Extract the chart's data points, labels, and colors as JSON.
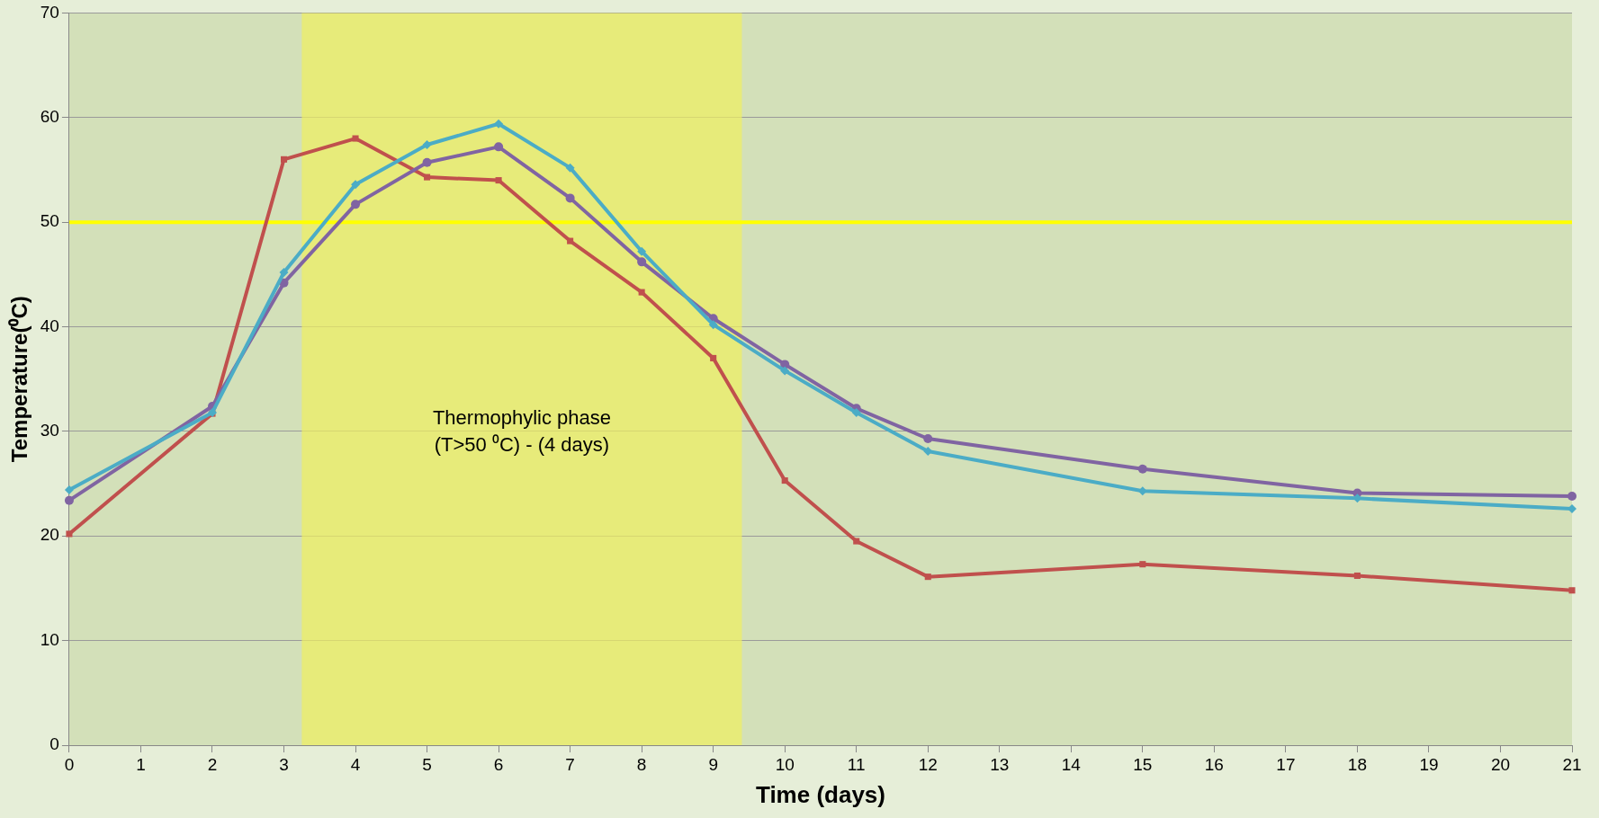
{
  "chart_data": {
    "type": "line",
    "xlabel": "Time (days)",
    "ylabel": "Temperature(⁰C)",
    "xlim": [
      0,
      21
    ],
    "xticks": [
      0,
      1,
      2,
      3,
      4,
      5,
      6,
      7,
      8,
      9,
      10,
      11,
      12,
      13,
      14,
      15,
      16,
      17,
      18,
      19,
      20,
      21
    ],
    "ylim": [
      0,
      70
    ],
    "yticks": [
      0,
      10,
      20,
      30,
      40,
      50,
      60,
      70
    ],
    "grid": "y",
    "legend": false,
    "series": [
      {
        "color": "#c0504d",
        "marker": "square",
        "x": [
          0,
          2,
          3,
          4,
          5,
          6,
          7,
          8,
          9,
          10,
          11,
          12,
          15,
          18,
          21
        ],
        "values": [
          20.2,
          31.7,
          56,
          58,
          54.3,
          54,
          48.2,
          43.3,
          37,
          25.3,
          19.5,
          16.1,
          17.3,
          16.2,
          14.8
        ]
      },
      {
        "color": "#8064a2",
        "marker": "circle",
        "x": [
          0,
          2,
          3,
          4,
          5,
          6,
          7,
          8,
          9,
          10,
          11,
          12,
          15,
          18,
          21
        ],
        "values": [
          23.4,
          32.4,
          44.2,
          51.7,
          55.7,
          57.2,
          52.3,
          46.2,
          40.8,
          36.4,
          32.2,
          29.3,
          26.4,
          24.1,
          23.8
        ]
      },
      {
        "color": "#4bacc6",
        "marker": "diamond",
        "x": [
          0,
          2,
          3,
          4,
          5,
          6,
          7,
          8,
          9,
          10,
          11,
          12,
          15,
          18,
          21
        ],
        "values": [
          24.4,
          31.8,
          45.2,
          53.6,
          57.4,
          59.4,
          55.2,
          47.2,
          40.2,
          35.8,
          31.8,
          28.1,
          24.3,
          23.6,
          22.6
        ]
      }
    ],
    "ref_lines": [
      {
        "axis": "y",
        "value": 50,
        "color": "#ffff00"
      }
    ],
    "bands": [
      {
        "axis": "x",
        "from": 3.25,
        "to": 9.4,
        "color": "#f0f060",
        "label": "Thermophylic phase\n(T>50 ⁰C) - (4 days)"
      }
    ]
  }
}
